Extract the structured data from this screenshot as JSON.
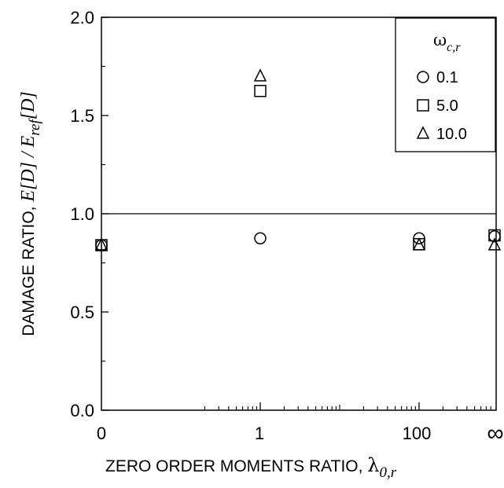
{
  "chart_data": {
    "type": "scatter",
    "x_tick_labels": [
      "0",
      "1",
      "100",
      "∞"
    ],
    "y_ticks": [
      "0.0",
      "0.5",
      "1.0",
      "1.5",
      "2.0"
    ],
    "ylim": [
      0.0,
      2.0
    ],
    "reference_line": 1.0,
    "xlabel": {
      "text": "ZERO ORDER MOMENTS RATIO, ",
      "symbol": "λ",
      "subscript": "0,r"
    },
    "ylabel": {
      "prefix": "DAMAGE RATIO, ",
      "num": "E[D]",
      "sep": " / ",
      "den_E": "E",
      "den_sub": "ref",
      "den_D": "[D]"
    },
    "legend": {
      "title_symbol": "ω",
      "title_subscript": "c,r",
      "placement": "top-right"
    },
    "series": [
      {
        "name": "0.1",
        "marker": "circle",
        "points": [
          {
            "x": "0",
            "y": 0.84
          },
          {
            "x": "1",
            "y": 0.875
          },
          {
            "x": "100",
            "y": 0.875
          },
          {
            "x": "∞",
            "y": 0.885
          }
        ]
      },
      {
        "name": "5.0",
        "marker": "square",
        "points": [
          {
            "x": "0",
            "y": 0.84
          },
          {
            "x": "1",
            "y": 1.625
          },
          {
            "x": "100",
            "y": 0.845
          },
          {
            "x": "∞",
            "y": 0.89
          }
        ]
      },
      {
        "name": "10.0",
        "marker": "triangle",
        "points": [
          {
            "x": "0",
            "y": 0.84
          },
          {
            "x": "1",
            "y": 1.7
          },
          {
            "x": "100",
            "y": 0.84
          },
          {
            "x": "∞",
            "y": 0.84
          }
        ]
      }
    ]
  }
}
